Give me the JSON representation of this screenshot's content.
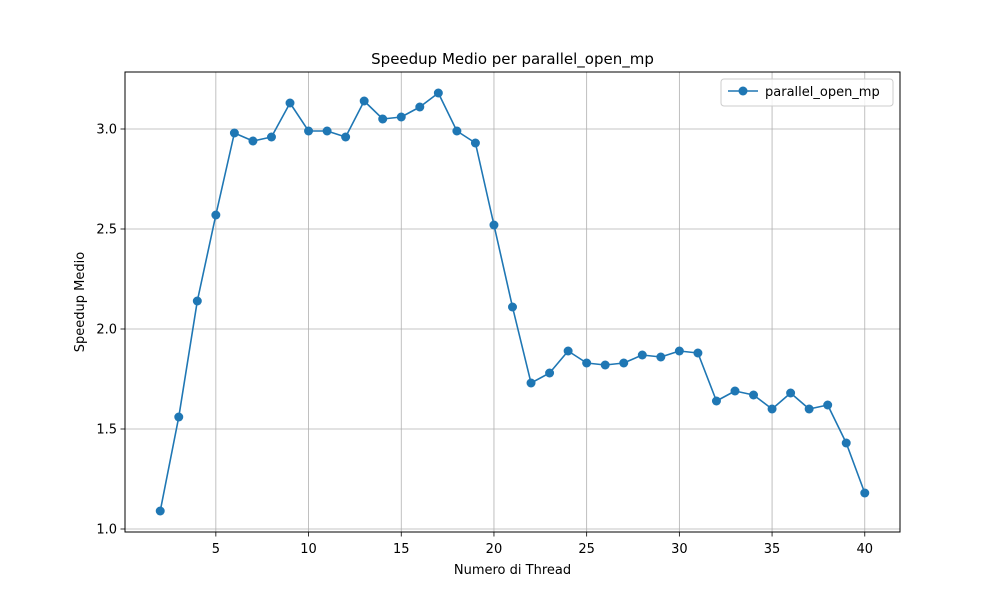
{
  "chart_data": {
    "type": "line",
    "title": "Speedup Medio per parallel_open_mp",
    "xlabel": "Numero di Thread",
    "ylabel": "Speedup Medio",
    "xlim": [
      0.1,
      41.9
    ],
    "ylim": [
      0.985,
      3.285
    ],
    "xticks": [
      5,
      10,
      15,
      20,
      25,
      30,
      35,
      40
    ],
    "yticks": [
      1.0,
      1.5,
      2.0,
      2.5,
      3.0
    ],
    "xtick_labels": [
      "5",
      "10",
      "15",
      "20",
      "25",
      "30",
      "35",
      "40"
    ],
    "ytick_labels": [
      "1.0",
      "1.5",
      "2.0",
      "2.5",
      "3.0"
    ],
    "grid": true,
    "legend_position": "top-right",
    "series": [
      {
        "name": "parallel_open_mp",
        "color": "#1f77b4",
        "marker": "circle",
        "x": [
          2,
          3,
          4,
          5,
          6,
          7,
          8,
          9,
          10,
          11,
          12,
          13,
          14,
          15,
          16,
          17,
          18,
          19,
          20,
          21,
          22,
          23,
          24,
          25,
          26,
          27,
          28,
          29,
          30,
          31,
          32,
          33,
          34,
          35,
          36,
          37,
          38,
          39,
          40
        ],
        "y": [
          1.09,
          1.56,
          2.14,
          2.57,
          2.98,
          2.94,
          2.96,
          3.13,
          2.99,
          2.99,
          2.96,
          3.14,
          3.05,
          3.06,
          3.11,
          3.18,
          2.99,
          2.93,
          2.52,
          2.11,
          1.73,
          1.78,
          1.89,
          1.83,
          1.82,
          1.83,
          1.87,
          1.86,
          1.89,
          1.88,
          1.64,
          1.69,
          1.67,
          1.6,
          1.68,
          1.6,
          1.62,
          1.43,
          1.18
        ]
      }
    ]
  }
}
